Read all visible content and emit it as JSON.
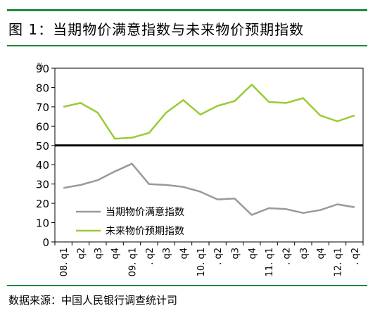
{
  "title": "图 1：当期物价满意指数与未来物价预期指数",
  "source": "数据来源：中国人民银行调查统计司",
  "chart_data": {
    "type": "line",
    "title": "图 1：当期物价满意指数与未来物价预期指数",
    "ylabel": "%",
    "ylim": [
      0,
      90
    ],
    "yticks": [
      "0",
      "10",
      "20",
      "30",
      "40",
      "50",
      "60",
      "70",
      "80",
      "90"
    ],
    "categories": [
      "08. q1",
      "q2",
      "q3",
      "q4",
      "09. q1",
      ". q2",
      "q3",
      "q4",
      "10. q1",
      ". q2",
      "q3",
      "q4",
      "11. q1",
      ". q2",
      "q3",
      "q4",
      "12. q1",
      ". q2"
    ],
    "legend_position": "bottom-left",
    "grid": false,
    "series": [
      {
        "name": "当期物价满意指数",
        "color": "#999999",
        "values": [
          28,
          29.5,
          32,
          36.5,
          40.5,
          30,
          29.5,
          28.5,
          26,
          22,
          22.5,
          14,
          17.5,
          17,
          15,
          16.5,
          19.5,
          18
        ]
      },
      {
        "name": "未来物价预期指数",
        "color": "#99cc33",
        "values": [
          70,
          72,
          67,
          53.5,
          54,
          56.5,
          67,
          73.5,
          66,
          70.5,
          73,
          81.5,
          72.5,
          72,
          74.5,
          65.5,
          62.5,
          65.5
        ]
      }
    ]
  }
}
